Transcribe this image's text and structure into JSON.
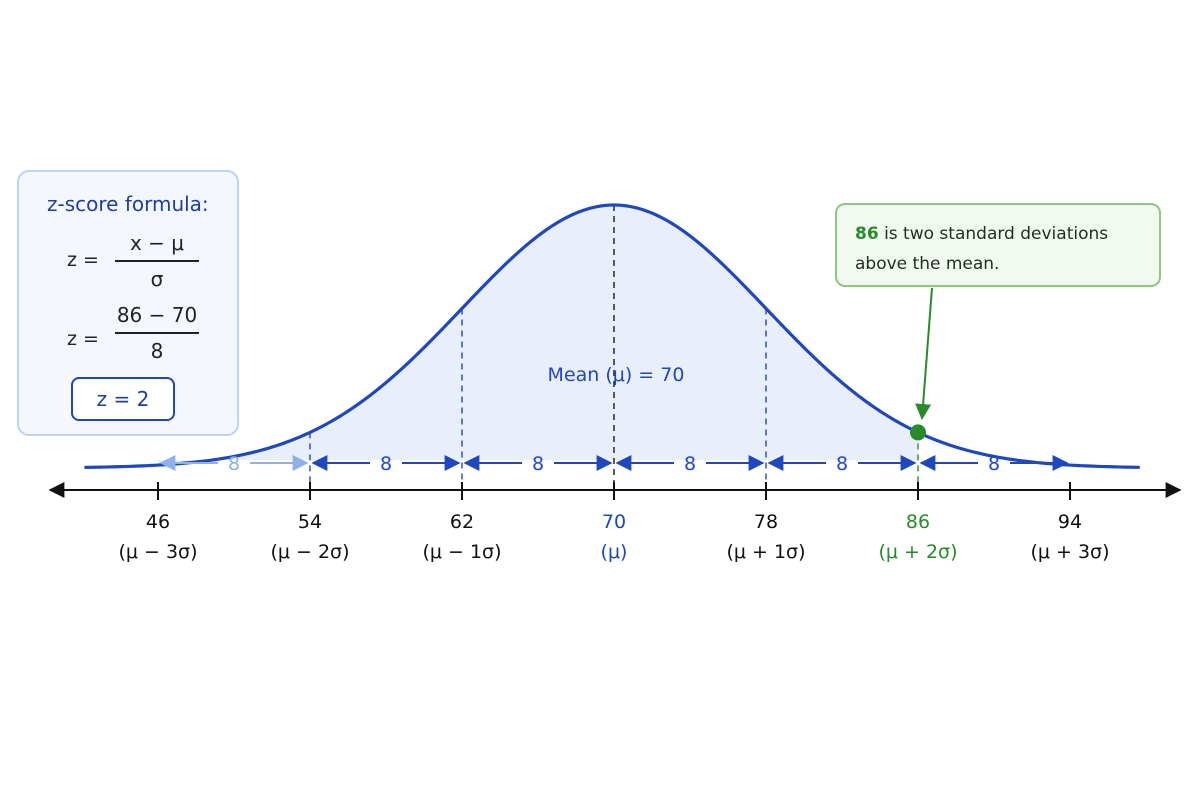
{
  "formula": {
    "title": "z-score formula:",
    "z_label": "z =",
    "general_numerator": "x − μ",
    "general_denominator": "σ",
    "specific_numerator": "86 − 70",
    "specific_denominator": "8",
    "result": "z = 2"
  },
  "callout": {
    "highlight": "86",
    "text_rest": " is two standard deviations",
    "text_line2": "above the mean."
  },
  "mean_label": "Mean (μ) = 70",
  "colors": {
    "curve": "#1f47c0",
    "fill": "#e8effb",
    "axis": "#111111",
    "mean": "#1f47c0",
    "highlight": "#2a8a2a",
    "interval": "#1f47c0",
    "interval_faint": "#8fb0e8"
  },
  "chart_data": {
    "type": "area",
    "distribution": "normal",
    "mean": 70,
    "sd": 8,
    "x_range": [
      40,
      100
    ],
    "ticks": [
      {
        "value": "46",
        "sub": "(μ − 3σ)"
      },
      {
        "value": "54",
        "sub": "(μ − 2σ)"
      },
      {
        "value": "62",
        "sub": "(μ − 1σ)"
      },
      {
        "value": "70",
        "sub": "(μ)"
      },
      {
        "value": "78",
        "sub": "(μ + 1σ)"
      },
      {
        "value": "86",
        "sub": "(μ + 2σ)"
      },
      {
        "value": "94",
        "sub": "(μ + 3σ)"
      }
    ],
    "interval_label": "8",
    "interval_count": 6,
    "shaded_range": [
      46,
      86
    ],
    "highlight_point": 86
  }
}
